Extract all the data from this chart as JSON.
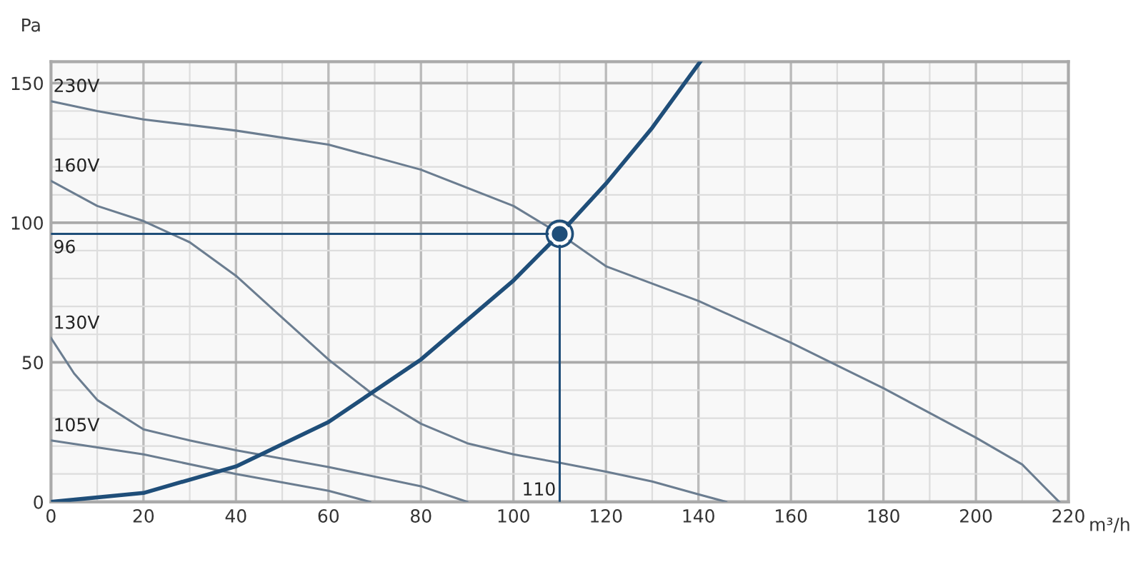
{
  "chart_data": {
    "type": "line",
    "xlabel": "m³/h",
    "ylabel": "Pa",
    "series": [
      {
        "name": "230V",
        "color": "#6b7d90",
        "x": [
          0,
          10,
          20,
          40,
          60,
          80,
          100,
          110,
          120,
          140,
          160,
          180,
          200,
          210,
          215,
          218
        ],
        "values": [
          143.5,
          140,
          137,
          133,
          128,
          119,
          106,
          96,
          84.4,
          72,
          57,
          40.7,
          23,
          13.4,
          5,
          0
        ]
      },
      {
        "name": "160V",
        "color": "#6b7d90",
        "x": [
          0,
          10,
          20,
          30,
          40,
          50,
          60,
          70,
          80,
          90,
          100,
          110,
          120,
          130,
          140,
          146
        ],
        "values": [
          115,
          106,
          100.6,
          93,
          81,
          66,
          51,
          38,
          28,
          21,
          17,
          14,
          10.8,
          7.3,
          2.7,
          0
        ]
      },
      {
        "name": "130V",
        "color": "#6b7d90",
        "x": [
          0,
          5,
          10,
          20,
          30,
          40,
          60,
          80,
          90
        ],
        "values": [
          58.7,
          46,
          36.5,
          26,
          22,
          18.5,
          12.5,
          5.6,
          0
        ]
      },
      {
        "name": "105V",
        "color": "#6b7d90",
        "x": [
          0,
          20,
          40,
          60,
          69
        ],
        "values": [
          22,
          17,
          10,
          4,
          0
        ]
      },
      {
        "color": "#1f4e79",
        "x": [
          0,
          20,
          40,
          60,
          80,
          100,
          110,
          120,
          130,
          140.4
        ],
        "values": [
          0,
          3.2,
          12.7,
          28.6,
          51,
          79.3,
          96,
          114,
          134,
          157.7
        ]
      },
      {
        "color": "#1f4e79",
        "x": [
          0,
          110
        ],
        "values": [
          96,
          96
        ]
      },
      {
        "color": "#1f4e79",
        "x": [
          110,
          110
        ],
        "values": [
          0,
          96
        ]
      },
      {
        "type": "scatter",
        "marker": "circle",
        "color": "#1f4e79",
        "x": [
          110
        ],
        "values": [
          96
        ]
      }
    ],
    "annotations": [
      {
        "text": "96",
        "x": 0,
        "y": 96
      },
      {
        "text": "110",
        "x": 110,
        "y": 0
      }
    ],
    "xlim": [
      0,
      220
    ],
    "ylim": [
      0,
      157.7
    ],
    "xticks": [
      0,
      {
        "value": 10,
        "label": null
      },
      20,
      {
        "value": 30,
        "label": null
      },
      40,
      {
        "value": 50,
        "label": null
      },
      60,
      {
        "value": 70,
        "label": null
      },
      80,
      {
        "value": 90,
        "label": null
      },
      100,
      {
        "value": 110,
        "label": null
      },
      120,
      {
        "value": 130,
        "label": null
      },
      140,
      {
        "value": 150,
        "label": null
      },
      160,
      {
        "value": 170,
        "label": null
      },
      180,
      {
        "value": 190,
        "label": null
      },
      200,
      {
        "value": 210,
        "label": null
      },
      220
    ],
    "yticks": [
      0,
      {
        "value": 10,
        "label": null
      },
      {
        "value": 20,
        "label": null
      },
      {
        "value": 30,
        "label": null
      },
      {
        "value": 40,
        "label": null
      },
      50,
      {
        "value": 60,
        "label": null
      },
      {
        "value": 70,
        "label": null
      },
      {
        "value": 80,
        "label": null
      },
      {
        "value": 90,
        "label": null
      },
      100,
      {
        "value": 110,
        "label": null
      },
      {
        "value": 120,
        "label": null
      },
      {
        "value": 130,
        "label": null
      },
      {
        "value": 140,
        "label": null
      },
      150
    ],
    "grid": true
  }
}
